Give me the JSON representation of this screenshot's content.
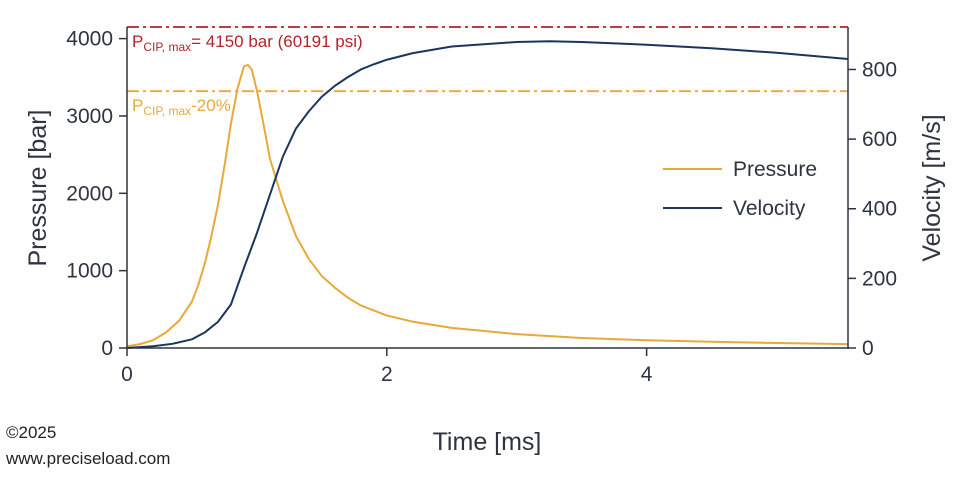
{
  "chart_data": {
    "type": "line",
    "xlabel": "Time [ms]",
    "ylabel_left": "Pressure [bar]",
    "ylabel_right": "Velocity [m/s]",
    "xlim": [
      0,
      5.55
    ],
    "ylim_left": [
      0,
      4150
    ],
    "ylim_right": [
      0,
      922
    ],
    "xticks": [
      "0",
      "2",
      "4"
    ],
    "xtick_values": [
      0,
      2,
      4
    ],
    "yticks_left": [
      "0",
      "1000",
      "2000",
      "3000",
      "4000"
    ],
    "ytick_values_left": [
      0,
      1000,
      2000,
      3000,
      4000
    ],
    "yticks_right": [
      "0",
      "200",
      "400",
      "600",
      "800"
    ],
    "ytick_values_right": [
      0,
      200,
      400,
      600,
      800
    ],
    "legend_position": "center-right",
    "series": [
      {
        "name": "Pressure",
        "axis": "left",
        "color": "#e8a93a",
        "x": [
          0,
          0.1,
          0.2,
          0.3,
          0.4,
          0.5,
          0.55,
          0.6,
          0.65,
          0.7,
          0.75,
          0.8,
          0.85,
          0.9,
          0.93,
          0.96,
          1.0,
          1.05,
          1.1,
          1.2,
          1.3,
          1.4,
          1.5,
          1.6,
          1.7,
          1.8,
          2.0,
          2.2,
          2.5,
          3.0,
          3.5,
          4.0,
          4.5,
          5.0,
          5.55
        ],
        "y": [
          20,
          50,
          100,
          200,
          350,
          600,
          820,
          1100,
          1450,
          1850,
          2350,
          2900,
          3350,
          3640,
          3660,
          3600,
          3330,
          2900,
          2450,
          1900,
          1450,
          1150,
          930,
          780,
          650,
          550,
          420,
          340,
          260,
          180,
          130,
          100,
          80,
          65,
          50
        ]
      },
      {
        "name": "Velocity",
        "axis": "right",
        "color": "#1b355e",
        "x": [
          0,
          0.2,
          0.35,
          0.5,
          0.6,
          0.7,
          0.8,
          0.9,
          1.0,
          1.1,
          1.2,
          1.3,
          1.4,
          1.5,
          1.6,
          1.7,
          1.8,
          1.9,
          2.0,
          2.2,
          2.5,
          3.0,
          3.25,
          3.5,
          4.0,
          4.5,
          5.0,
          5.55
        ],
        "y": [
          0,
          5,
          12,
          25,
          45,
          75,
          125,
          230,
          330,
          440,
          550,
          630,
          680,
          722,
          753,
          778,
          800,
          815,
          828,
          847,
          866,
          879,
          881,
          879,
          871,
          861,
          848,
          830
        ]
      }
    ],
    "reference_lines": [
      {
        "value": 4150,
        "axis": "left",
        "color": "#b3242a",
        "label_main": "P",
        "label_sub": "CIP, max",
        "label_rest": "= 4150 bar (60191 psi)"
      },
      {
        "value": 3320,
        "axis": "left",
        "color": "#e8a93a",
        "label_main": "P",
        "label_sub": "CIP, max",
        "label_rest": "-20%"
      }
    ]
  },
  "footer": {
    "copyright": "©2025",
    "website": "www.preciseload.com"
  }
}
